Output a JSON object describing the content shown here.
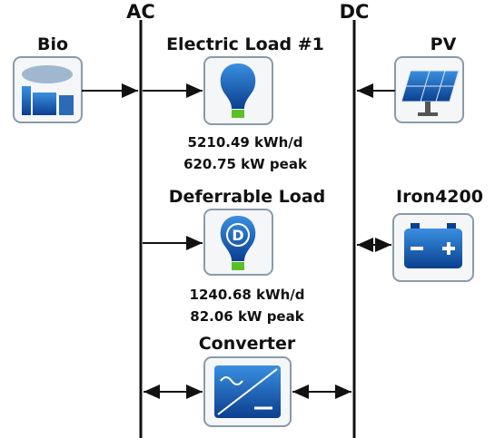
{
  "buses": [
    {
      "label": "AC"
    },
    {
      "label": "DC"
    }
  ],
  "nodes": [
    {
      "label": "Bio"
    },
    {
      "label": "Electric Load #1",
      "details": [
        "5210.49 kWh/d",
        "620.75 kW peak"
      ]
    },
    {
      "label": "PV"
    },
    {
      "label": "Deferrable Load",
      "details": [
        "1240.68 kWh/d",
        "82.06 kW peak"
      ]
    },
    {
      "label": "Iron4200"
    },
    {
      "label": "Converter"
    }
  ]
}
